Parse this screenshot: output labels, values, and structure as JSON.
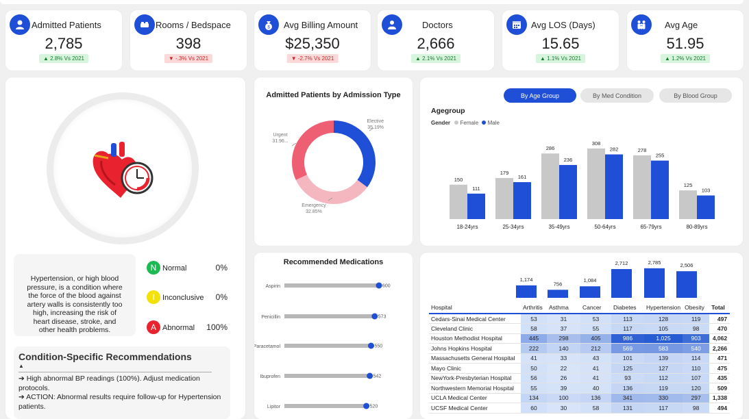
{
  "kpis": [
    {
      "title": "Admitted Patients",
      "value": "2,785",
      "delta": "▲ 2.8% Vs 2021",
      "trend": "up",
      "icon": "patient-icon"
    },
    {
      "title": "Rooms / Bedspace",
      "value": "398",
      "delta": "▼ -.3% Vs 2021",
      "trend": "down",
      "icon": "bed-icon"
    },
    {
      "title": "Avg Billing Amount",
      "value": "$25,350",
      "delta": "▼ -2.7% Vs 2021",
      "trend": "down",
      "icon": "money-bag-icon"
    },
    {
      "title": "Doctors",
      "value": "2,666",
      "delta": "▲ 2.1% Vs 2021",
      "trend": "up",
      "icon": "doctor-icon"
    },
    {
      "title": "Avg LOS (Days)",
      "value": "15.65",
      "delta": "▲ 1.1% Vs 2021",
      "trend": "up",
      "icon": "calendar-icon"
    },
    {
      "title": "Avg Age",
      "value": "51.95",
      "delta": "▲ 1.2% Vs 2021",
      "trend": "up",
      "icon": "family-icon"
    }
  ],
  "colors": {
    "accent": "#1f4fd6",
    "male": "#1f4fd6",
    "female": "#c8c8c8",
    "donut_elective": "#1f4fd6",
    "donut_emergency": "#f4b6bf",
    "donut_urgent": "#ef5f74",
    "normal": "#1db954",
    "inconclusive": "#f2e20a",
    "abnormal": "#e8222e"
  },
  "condition": {
    "description": "Hypertension, or high blood pressure, is a condition where the force of the blood against artery walls is consistently too high, increasing the risk of heart disease, stroke, and other health problems.",
    "rows": [
      {
        "letter": "N",
        "label": "Normal",
        "pct": "0%"
      },
      {
        "letter": "I",
        "label": "Inconclusive",
        "pct": "0%"
      },
      {
        "letter": "A",
        "label": "Abnormal",
        "pct": "100%"
      }
    ]
  },
  "recommendations": {
    "title": "Condition-Specific Recommendations",
    "caret": "▲",
    "lines": [
      "➔ High abnormal BP readings (100%). Adjust medication protocols.",
      "➔ ACTION: Abnormal results require follow-up for Hypertension patients."
    ]
  },
  "toggles": [
    "By Age Group",
    "By Med Condition",
    "By Blood Group"
  ],
  "chart_data": [
    {
      "type": "pie",
      "title": "Admitted Patients by Admission Type",
      "slices": [
        {
          "label": "Elective",
          "value": 35.19,
          "display": "35.19%"
        },
        {
          "label": "Emergency",
          "value": 32.85,
          "display": "32.85%"
        },
        {
          "label": "Urgent",
          "value": 31.96,
          "display": "31.96..."
        }
      ]
    },
    {
      "type": "bar",
      "title": "Agegroup",
      "legend_title": "Gender",
      "categories": [
        "18-24yrs",
        "25-34yrs",
        "35-49yrs",
        "50-64yrs",
        "65-79yrs",
        "80-89yrs"
      ],
      "series": [
        {
          "name": "Female",
          "values": [
            150,
            179,
            286,
            308,
            278,
            125
          ]
        },
        {
          "name": "Male",
          "values": [
            111,
            161,
            236,
            282,
            255,
            103
          ]
        }
      ]
    },
    {
      "type": "bar",
      "title": "Recommended Medications",
      "orientation": "horizontal",
      "categories": [
        "Aspirin",
        "Penicillin",
        "Paracetamol",
        "Ibuprofen",
        "Lipitor"
      ],
      "values": [
        600,
        573,
        550,
        542,
        520
      ]
    },
    {
      "type": "bar",
      "categories": [
        "Arthritis",
        "Asthma",
        "Cancer",
        "Diabetes",
        "Hypertension",
        "Obesity"
      ],
      "values": [
        1174,
        756,
        1084,
        2712,
        2785,
        2506
      ],
      "labels": [
        "1,174",
        "756",
        "1,084",
        "2,712",
        "2,785",
        "2,506"
      ]
    },
    {
      "type": "table",
      "columns": [
        "Hospital",
        "Arthritis",
        "Asthma",
        "Cancer",
        "Diabetes",
        "Hypertension",
        "Obesity",
        "Total"
      ],
      "rows": [
        [
          "Cedars-Sinai Medical Center",
          "53",
          "31",
          "53",
          "113",
          "128",
          "119",
          "497"
        ],
        [
          "Cleveland Clinic",
          "58",
          "37",
          "55",
          "117",
          "105",
          "98",
          "470"
        ],
        [
          "Houston Methodist Hospital",
          "445",
          "298",
          "405",
          "986",
          "1,025",
          "903",
          "4,062"
        ],
        [
          "Johns Hopkins Hospital",
          "222",
          "140",
          "212",
          "569",
          "583",
          "540",
          "2,266"
        ],
        [
          "Massachusetts General Hospital",
          "41",
          "33",
          "43",
          "101",
          "139",
          "114",
          "471"
        ],
        [
          "Mayo Clinic",
          "50",
          "22",
          "41",
          "125",
          "127",
          "110",
          "475"
        ],
        [
          "NewYork-Presbyterian Hospital",
          "56",
          "26",
          "41",
          "93",
          "112",
          "107",
          "435"
        ],
        [
          "Northwestern Memorial Hospital",
          "55",
          "39",
          "40",
          "136",
          "119",
          "120",
          "509"
        ],
        [
          "UCLA Medical Center",
          "134",
          "100",
          "136",
          "341",
          "330",
          "297",
          "1,338"
        ],
        [
          "UCSF Medical Center",
          "60",
          "30",
          "58",
          "131",
          "117",
          "98",
          "494"
        ]
      ]
    }
  ]
}
